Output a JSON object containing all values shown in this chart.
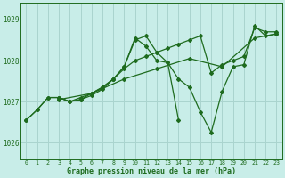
{
  "title": "Graphe pression niveau de la mer (hPa)",
  "background_color": "#c8ede8",
  "grid_color": "#aad4ce",
  "line_color": "#1e6b1e",
  "xlim": [
    -0.5,
    23.5
  ],
  "ylim": [
    1025.6,
    1029.4
  ],
  "yticks": [
    1026,
    1027,
    1028,
    1029
  ],
  "xticks": [
    0,
    1,
    2,
    3,
    4,
    5,
    6,
    7,
    8,
    9,
    10,
    11,
    12,
    13,
    14,
    15,
    16,
    17,
    18,
    19,
    20,
    21,
    22,
    23
  ],
  "series": [
    {
      "x": [
        0,
        1,
        2,
        3,
        4,
        5,
        6,
        7,
        8,
        9,
        10,
        11,
        12,
        13,
        14
      ],
      "y": [
        1026.55,
        1026.8,
        1027.1,
        1027.1,
        1027.0,
        1027.05,
        1027.15,
        1027.3,
        1027.55,
        1027.85,
        1028.5,
        1028.6,
        1028.2,
        1027.95,
        1026.55
      ]
    },
    {
      "x": [
        0,
        1,
        2,
        3,
        4,
        5,
        6,
        7,
        8,
        9,
        10,
        11,
        12,
        13,
        14,
        15,
        16,
        17,
        18,
        19,
        20,
        21,
        22,
        23
      ],
      "y": [
        1026.55,
        1026.8,
        1027.1,
        1027.1,
        1027.0,
        1027.1,
        1027.2,
        1027.35,
        1027.55,
        1027.8,
        1028.0,
        1028.1,
        1028.2,
        1028.3,
        1028.4,
        1028.5,
        1028.6,
        1027.7,
        1027.9,
        1028.0,
        1028.1,
        1028.8,
        1028.7,
        1028.7
      ]
    },
    {
      "x": [
        3,
        4,
        5,
        6,
        7,
        8,
        9,
        10,
        11,
        12,
        13,
        14,
        15,
        16,
        17,
        18,
        19,
        20,
        21,
        22,
        23
      ],
      "y": [
        1027.1,
        1027.0,
        1027.05,
        1027.2,
        1027.35,
        1027.55,
        1027.85,
        1028.55,
        1028.35,
        1028.0,
        1027.95,
        1027.55,
        1027.35,
        1026.75,
        1026.25,
        1027.25,
        1027.85,
        1027.9,
        1028.85,
        1028.6,
        1028.65
      ]
    },
    {
      "x": [
        3,
        6,
        9,
        12,
        15,
        18,
        21,
        23
      ],
      "y": [
        1027.05,
        1027.2,
        1027.55,
        1027.8,
        1028.05,
        1027.85,
        1028.55,
        1028.65
      ]
    }
  ]
}
